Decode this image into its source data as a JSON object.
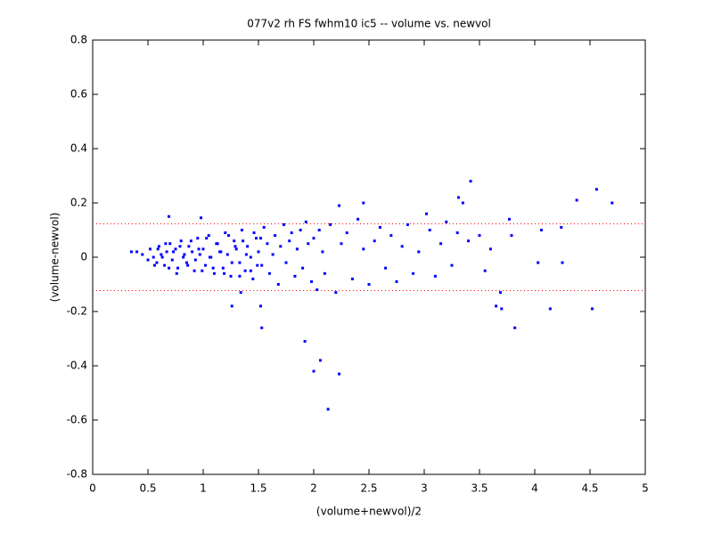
{
  "chart_data": {
    "type": "scatter",
    "title": "077v2 rh FS fwhm10 ic5 -- volume vs. newvol",
    "x_label": "(volume+newvol)/2",
    "y_label": "(volume-newvol)",
    "color": "#0000ff",
    "reference_lines": [
      0.123,
      -0.123
    ],
    "reference_color": "#ff0000",
    "xlim": [
      0,
      5
    ],
    "xticks": [
      0,
      0.5,
      1,
      1.5,
      2,
      2.5,
      3,
      3.5,
      4,
      4.5,
      5
    ],
    "ylim": [
      -0.8,
      0.8
    ],
    "yticks": [
      -0.8,
      -0.6,
      -0.4,
      -0.2,
      0,
      0.2,
      0.4,
      0.6,
      0.8
    ],
    "x": [
      0.4,
      0.45,
      0.5,
      0.52,
      0.55,
      0.58,
      0.6,
      0.62,
      0.65,
      0.67,
      0.7,
      0.72,
      0.75,
      0.77,
      0.8,
      0.82,
      0.85,
      0.87,
      0.9,
      0.92,
      0.95,
      0.97,
      1.0,
      1.02,
      1.05,
      1.07,
      1.1,
      1.12,
      1.15,
      1.18,
      1.2,
      1.22,
      1.25,
      1.28,
      1.3,
      1.33,
      1.35,
      1.38,
      1.4,
      1.43,
      1.45,
      1.48,
      1.5,
      1.53,
      1.55,
      1.58,
      1.6,
      1.63,
      1.65,
      1.68,
      1.7,
      1.73,
      1.75,
      1.78,
      1.8,
      1.83,
      1.85,
      1.88,
      1.9,
      1.93,
      1.95,
      1.98,
      2.0,
      2.03,
      2.05,
      2.08,
      2.1,
      2.15,
      2.2,
      2.25,
      2.3,
      2.35,
      2.4,
      2.45,
      2.5,
      2.55,
      2.6,
      2.65,
      2.7,
      2.75,
      2.8,
      2.85,
      2.9,
      2.95,
      3.05,
      3.1,
      3.15,
      3.2,
      3.25,
      3.3,
      3.4,
      3.5,
      3.55,
      3.6,
      0.56,
      0.59,
      0.63,
      0.66,
      0.69,
      0.73,
      0.76,
      0.79,
      0.83,
      0.86,
      0.89,
      0.93,
      0.96,
      0.99,
      1.03,
      1.06,
      1.09,
      1.13,
      1.16,
      1.19,
      1.23,
      1.26,
      1.29,
      1.33,
      1.36,
      1.39,
      1.43,
      1.46,
      1.49,
      1.52,
      0.35,
      0.69,
      0.98,
      1.26,
      1.34,
      1.52,
      1.53,
      1.92,
      2.0,
      2.06,
      2.13,
      2.23,
      2.23,
      2.45,
      3.02,
      3.31,
      3.42,
      3.35,
      3.65,
      3.7,
      3.69,
      3.77,
      3.82,
      3.79,
      4.06,
      4.03,
      4.14,
      4.24,
      4.25,
      4.38,
      4.52,
      4.56,
      4.7
    ],
    "values": [
      0.02,
      0.01,
      -0.01,
      0.03,
      0.0,
      -0.02,
      0.04,
      0.01,
      -0.03,
      0.02,
      0.05,
      -0.01,
      0.03,
      -0.04,
      0.06,
      0.0,
      -0.02,
      0.04,
      0.02,
      -0.05,
      0.07,
      0.01,
      0.03,
      -0.03,
      0.08,
      0.0,
      -0.06,
      0.05,
      0.02,
      -0.04,
      0.09,
      0.01,
      -0.07,
      0.06,
      0.03,
      -0.02,
      0.1,
      -0.05,
      0.04,
      0.0,
      -0.08,
      0.07,
      0.02,
      -0.03,
      0.11,
      0.05,
      -0.06,
      0.01,
      0.08,
      -0.1,
      0.04,
      0.12,
      -0.02,
      0.06,
      0.09,
      -0.07,
      0.03,
      0.1,
      -0.04,
      0.13,
      0.05,
      -0.09,
      0.07,
      -0.12,
      0.1,
      0.02,
      -0.06,
      0.12,
      -0.13,
      0.05,
      0.09,
      -0.08,
      0.14,
      0.03,
      -0.1,
      0.06,
      0.11,
      -0.04,
      0.08,
      -0.09,
      0.04,
      0.12,
      -0.06,
      0.02,
      0.1,
      -0.07,
      0.05,
      0.13,
      -0.03,
      0.09,
      0.06,
      0.08,
      -0.05,
      0.03,
      -0.03,
      0.03,
      0.0,
      0.05,
      -0.04,
      0.02,
      -0.06,
      0.04,
      0.01,
      -0.03,
      0.06,
      -0.01,
      0.03,
      -0.05,
      0.07,
      0.0,
      -0.04,
      0.05,
      0.02,
      -0.06,
      0.08,
      -0.02,
      0.04,
      -0.07,
      0.06,
      0.01,
      -0.05,
      0.09,
      -0.03,
      0.07,
      0.02,
      0.15,
      0.145,
      -0.18,
      -0.13,
      -0.18,
      -0.26,
      -0.31,
      -0.42,
      -0.38,
      -0.56,
      -0.43,
      0.19,
      0.2,
      0.16,
      0.22,
      0.28,
      0.2,
      -0.18,
      -0.19,
      -0.13,
      0.14,
      -0.26,
      0.08,
      0.1,
      -0.02,
      -0.19,
      0.11,
      -0.02,
      0.21,
      -0.19,
      0.25,
      0.2
    ]
  }
}
